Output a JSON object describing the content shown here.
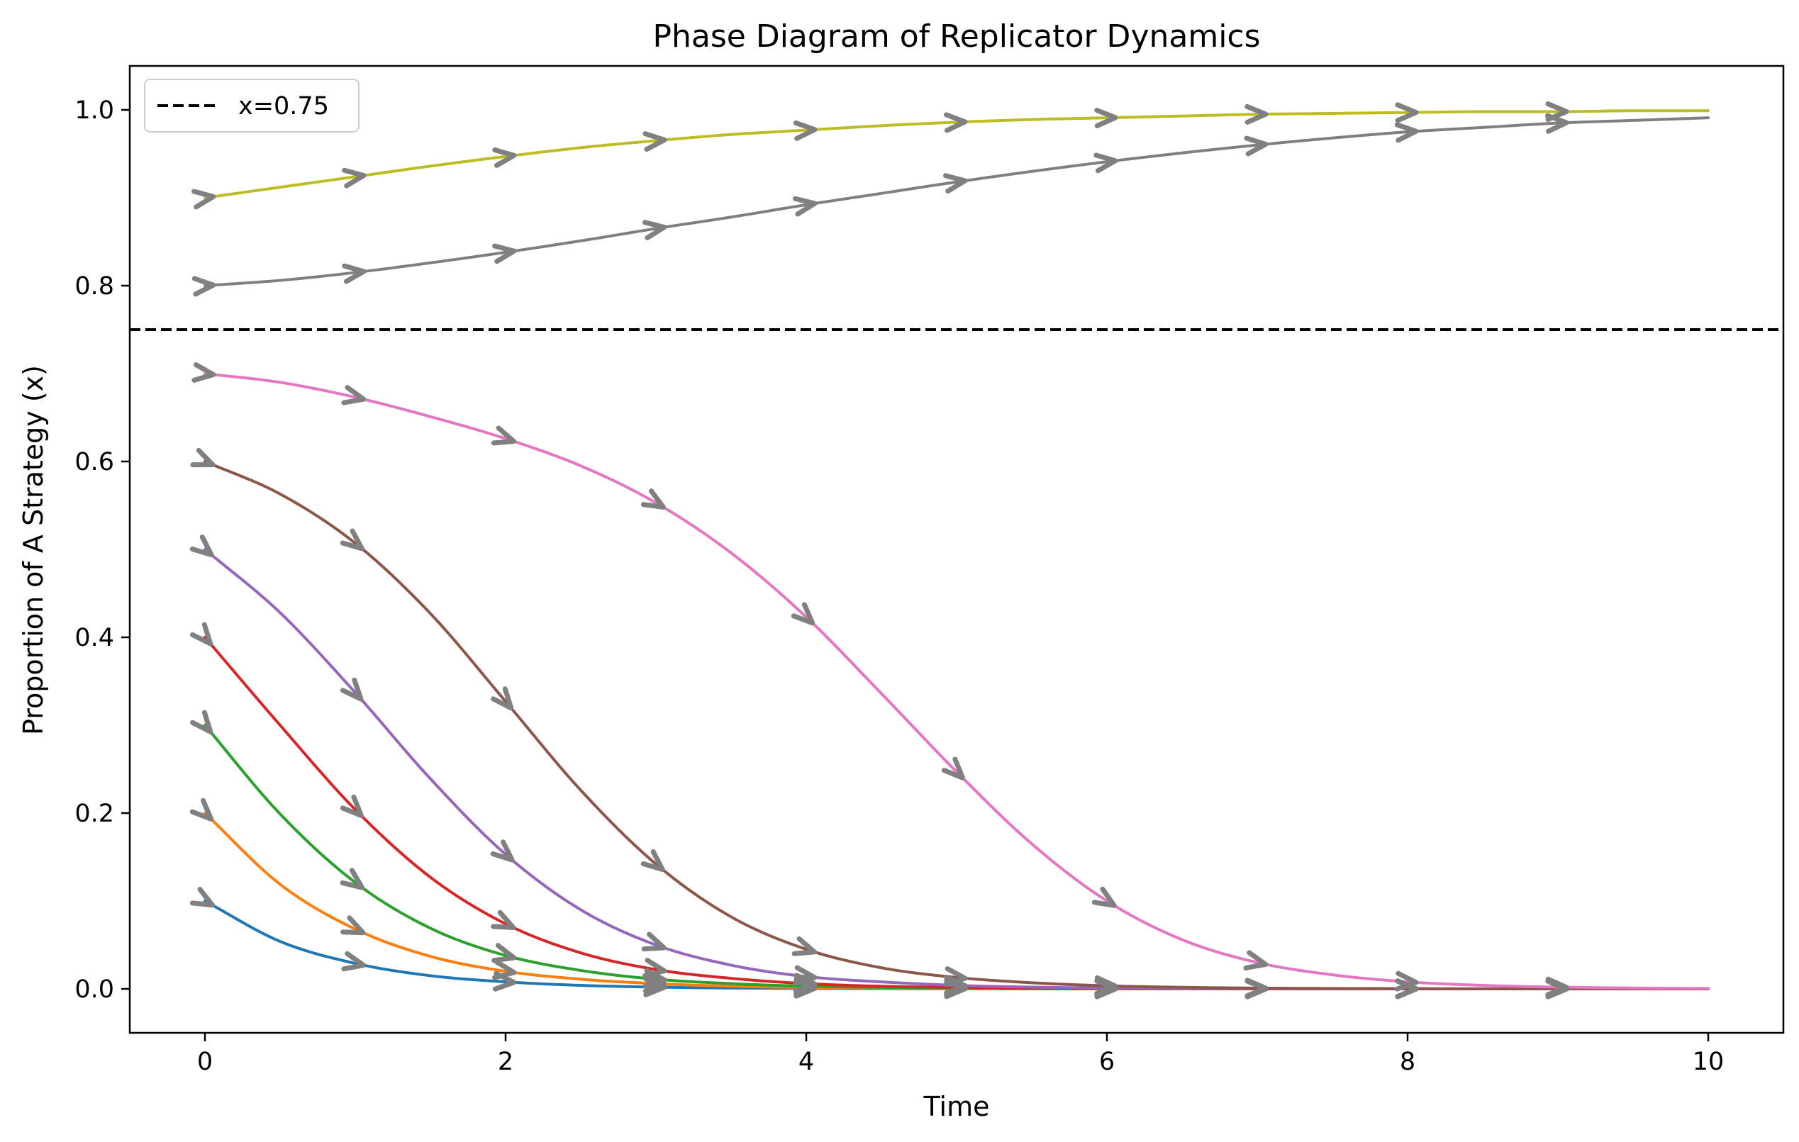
{
  "chart_data": {
    "type": "line",
    "title": "Phase Diagram of Replicator Dynamics",
    "xlabel": "Time",
    "ylabel": "Proportion of A Strategy (x)",
    "xlim": [
      -0.5,
      10.5
    ],
    "ylim": [
      -0.05,
      1.05
    ],
    "x_ticks": [
      "0",
      "2",
      "4",
      "6",
      "8",
      "10"
    ],
    "y_ticks": [
      "0.0",
      "0.2",
      "0.4",
      "0.6",
      "0.8",
      "1.0"
    ],
    "grid": false,
    "legend": {
      "placement": "top-left",
      "entries": [
        {
          "label": "x=0.75",
          "style": "dashed",
          "color": "#000000"
        }
      ]
    },
    "reference_line": {
      "y": 0.75,
      "style": "dashed",
      "color": "#000000"
    },
    "arrow_color": "#808080",
    "arrow_x": [
      0,
      1,
      2,
      3,
      4,
      5,
      6,
      7,
      8,
      9
    ],
    "curve_x": [
      0,
      0.5,
      1,
      1.5,
      2,
      2.5,
      3,
      3.5,
      4,
      4.5,
      5,
      5.5,
      6,
      6.5,
      7,
      7.5,
      8,
      8.5,
      9,
      9.5,
      10
    ],
    "series": [
      {
        "color": "#1f77b4",
        "values": [
          0.1,
          0.054,
          0.029,
          0.015,
          0.008,
          0.004,
          0.002,
          0.001,
          0.0006,
          0.0003,
          0.0002,
          0.0001,
          0.0,
          0.0,
          0.0,
          0.0,
          0.0,
          0.0,
          0.0,
          0.0,
          0.0
        ]
      },
      {
        "color": "#ff7f0e",
        "values": [
          0.2,
          0.119,
          0.068,
          0.037,
          0.02,
          0.011,
          0.006,
          0.003,
          0.0016,
          0.0009,
          0.0005,
          0.0003,
          0.0001,
          0.0001,
          0.0,
          0.0,
          0.0,
          0.0,
          0.0,
          0.0,
          0.0
        ]
      },
      {
        "color": "#2ca02c",
        "values": [
          0.3,
          0.199,
          0.121,
          0.069,
          0.038,
          0.021,
          0.011,
          0.006,
          0.003,
          0.0017,
          0.0009,
          0.0005,
          0.0003,
          0.0001,
          0.0001,
          0.0,
          0.0,
          0.0,
          0.0,
          0.0,
          0.0
        ]
      },
      {
        "color": "#d62728",
        "values": [
          0.4,
          0.3,
          0.204,
          0.127,
          0.074,
          0.041,
          0.022,
          0.012,
          0.006,
          0.003,
          0.0018,
          0.001,
          0.0005,
          0.0003,
          0.0001,
          0.0001,
          0.0,
          0.0,
          0.0,
          0.0,
          0.0
        ]
      },
      {
        "color": "#9467bd",
        "values": [
          0.5,
          0.428,
          0.337,
          0.239,
          0.153,
          0.09,
          0.05,
          0.027,
          0.014,
          0.008,
          0.004,
          0.002,
          0.0011,
          0.0006,
          0.0003,
          0.0002,
          0.0001,
          0.0,
          0.0,
          0.0,
          0.0
        ]
      },
      {
        "color": "#8c564b",
        "values": [
          0.6,
          0.563,
          0.507,
          0.427,
          0.327,
          0.226,
          0.142,
          0.082,
          0.045,
          0.024,
          0.013,
          0.007,
          0.0035,
          0.0018,
          0.0009,
          0.0005,
          0.0003,
          0.0001,
          0.0001,
          0.0,
          0.0
        ]
      },
      {
        "color": "#e377c2",
        "values": [
          0.7,
          0.69,
          0.673,
          0.651,
          0.626,
          0.595,
          0.553,
          0.496,
          0.423,
          0.336,
          0.247,
          0.165,
          0.1,
          0.056,
          0.03,
          0.016,
          0.008,
          0.004,
          0.002,
          0.001,
          0.0005
        ]
      },
      {
        "color": "#7f7f7f",
        "values": [
          0.8,
          0.806,
          0.815,
          0.826,
          0.838,
          0.851,
          0.865,
          0.878,
          0.892,
          0.905,
          0.918,
          0.93,
          0.941,
          0.951,
          0.96,
          0.968,
          0.975,
          0.98,
          0.985,
          0.988,
          0.991
        ]
      },
      {
        "color": "#bcbd22",
        "values": [
          0.9,
          0.912,
          0.924,
          0.936,
          0.947,
          0.957,
          0.965,
          0.972,
          0.977,
          0.982,
          0.986,
          0.989,
          0.991,
          0.993,
          0.995,
          0.996,
          0.997,
          0.998,
          0.998,
          0.999,
          0.999
        ]
      }
    ]
  }
}
